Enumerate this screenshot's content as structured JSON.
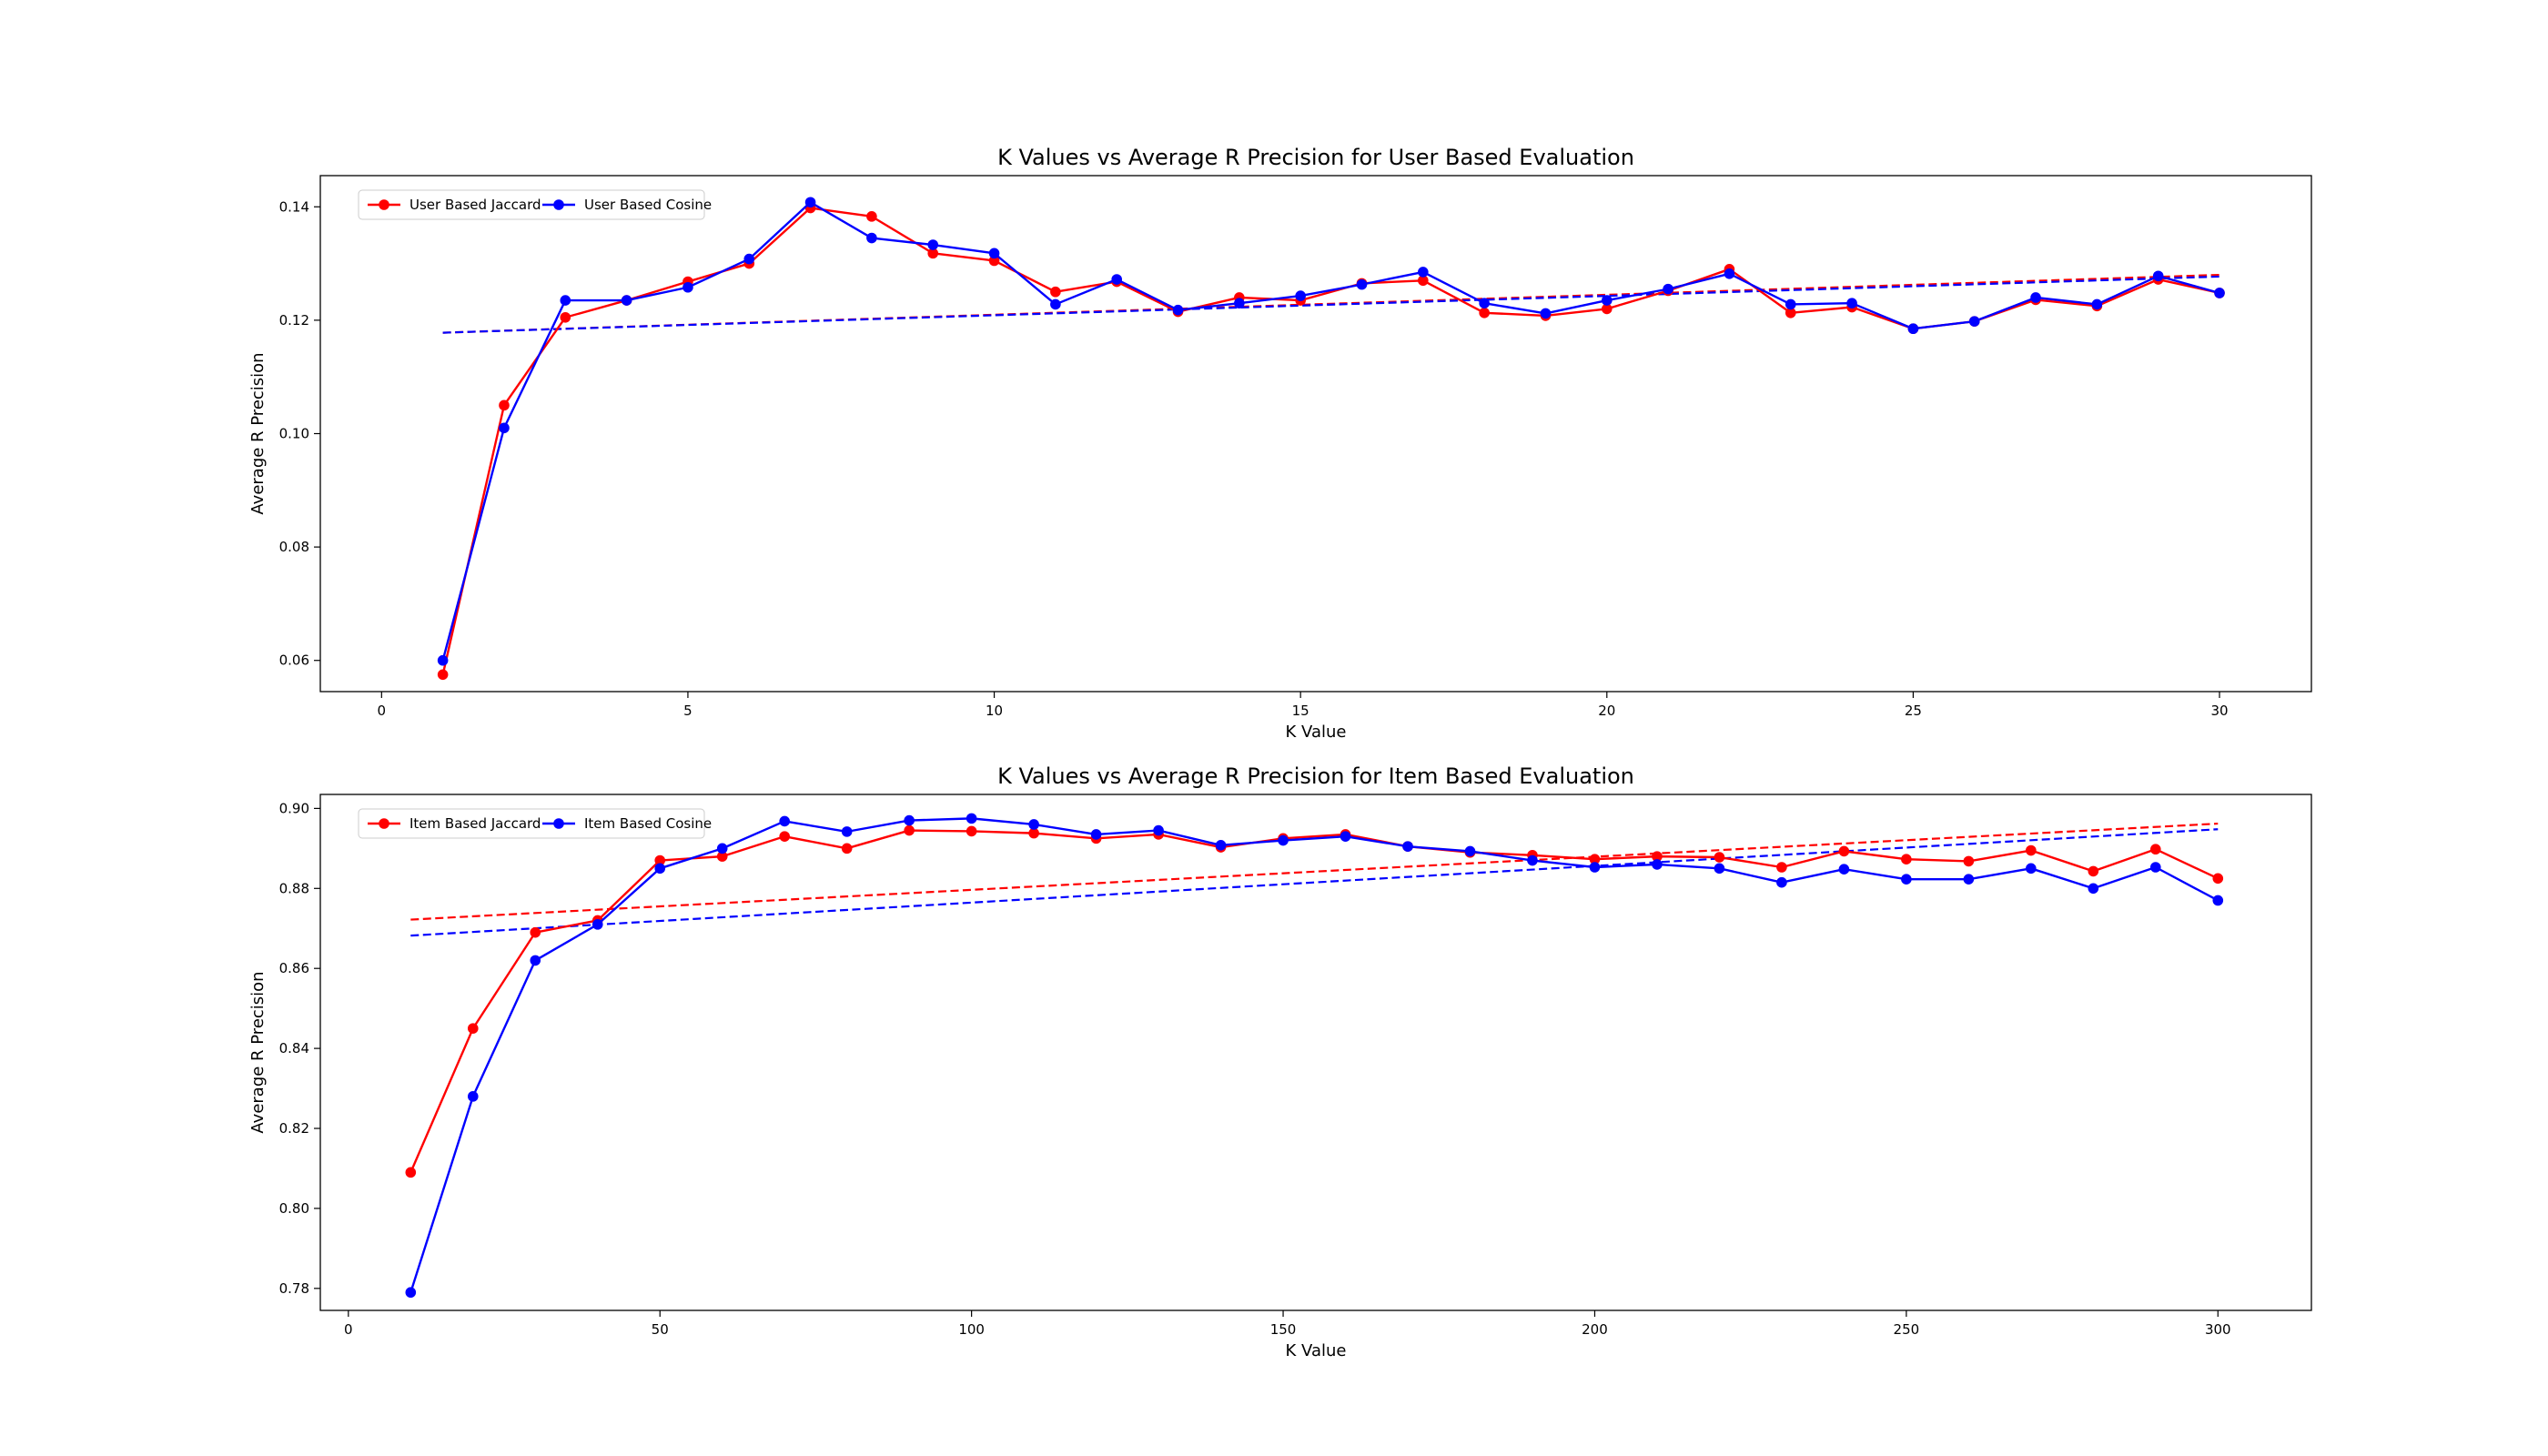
{
  "chart_data": [
    {
      "type": "line",
      "title": "K Values vs Average R Precision for User Based Evaluation",
      "xlabel": "K Value",
      "ylabel": "Average R Precision",
      "xlim": [
        -1,
        31.5
      ],
      "ylim": [
        0.0545,
        0.1455
      ],
      "xticks": [
        0,
        5,
        10,
        15,
        20,
        25,
        30
      ],
      "yticks": [
        0.06,
        0.08,
        0.1,
        0.12,
        0.14
      ],
      "ytick_format": 2,
      "legend_position": "top-left",
      "x": [
        1,
        2,
        3,
        4,
        5,
        6,
        7,
        8,
        9,
        10,
        11,
        12,
        13,
        14,
        15,
        16,
        17,
        18,
        19,
        20,
        21,
        22,
        23,
        24,
        25,
        26,
        27,
        28,
        29,
        30
      ],
      "series": [
        {
          "name": "User Based Jaccard",
          "color": "#ff0000",
          "values": [
            0.0575,
            0.105,
            0.1205,
            0.1235,
            0.1268,
            0.13,
            0.1398,
            0.1383,
            0.1318,
            0.1305,
            0.125,
            0.1268,
            0.1215,
            0.124,
            0.1235,
            0.1265,
            0.127,
            0.1213,
            0.1208,
            0.122,
            0.1252,
            0.129,
            0.1213,
            0.1223,
            0.1185,
            0.1198,
            0.1236,
            0.1225,
            0.1272,
            0.1248
          ],
          "trend": [
            0.1178,
            0.128
          ]
        },
        {
          "name": "User Based Cosine",
          "color": "#0000ff",
          "values": [
            0.06,
            0.101,
            0.1235,
            0.1235,
            0.1258,
            0.1308,
            0.1408,
            0.1345,
            0.1333,
            0.1318,
            0.1228,
            0.1272,
            0.1218,
            0.123,
            0.1243,
            0.1263,
            0.1285,
            0.123,
            0.1212,
            0.1235,
            0.1255,
            0.1282,
            0.1228,
            0.123,
            0.1185,
            0.1198,
            0.124,
            0.1228,
            0.1278,
            0.1248
          ],
          "trend": [
            0.1178,
            0.1277
          ]
        }
      ]
    },
    {
      "type": "line",
      "title": "K Values vs Average R Precision for Item Based Evaluation",
      "xlabel": "K Value",
      "ylabel": "Average R Precision",
      "xlim": [
        -4.5,
        315
      ],
      "ylim": [
        0.7745,
        0.9035
      ],
      "xticks": [
        0,
        50,
        100,
        150,
        200,
        250,
        300
      ],
      "yticks": [
        0.78,
        0.8,
        0.82,
        0.84,
        0.86,
        0.88,
        0.9
      ],
      "ytick_format": 2,
      "legend_position": "top-left",
      "x": [
        10,
        20,
        30,
        40,
        50,
        60,
        70,
        80,
        90,
        100,
        110,
        120,
        130,
        140,
        150,
        160,
        170,
        180,
        190,
        200,
        210,
        220,
        230,
        240,
        250,
        260,
        270,
        280,
        290,
        300
      ],
      "series": [
        {
          "name": "Item Based Jaccard",
          "color": "#ff0000",
          "values": [
            0.809,
            0.845,
            0.869,
            0.872,
            0.887,
            0.888,
            0.893,
            0.89,
            0.8945,
            0.8943,
            0.8938,
            0.8925,
            0.8935,
            0.8903,
            0.8925,
            0.8935,
            0.8905,
            0.889,
            0.8883,
            0.8873,
            0.888,
            0.8878,
            0.8853,
            0.8893,
            0.8873,
            0.8868,
            0.8895,
            0.8843,
            0.8898,
            0.8825
          ],
          "trend": [
            0.8722,
            0.8962
          ]
        },
        {
          "name": "Item Based Cosine",
          "color": "#0000ff",
          "values": [
            0.779,
            0.828,
            0.862,
            0.871,
            0.885,
            0.89,
            0.8968,
            0.8942,
            0.897,
            0.8975,
            0.896,
            0.8935,
            0.8945,
            0.8908,
            0.892,
            0.893,
            0.8905,
            0.8893,
            0.887,
            0.8853,
            0.886,
            0.885,
            0.8815,
            0.8848,
            0.8823,
            0.8823,
            0.885,
            0.88,
            0.8853,
            0.877
          ],
          "trend": [
            0.8682,
            0.8948
          ]
        }
      ]
    }
  ]
}
